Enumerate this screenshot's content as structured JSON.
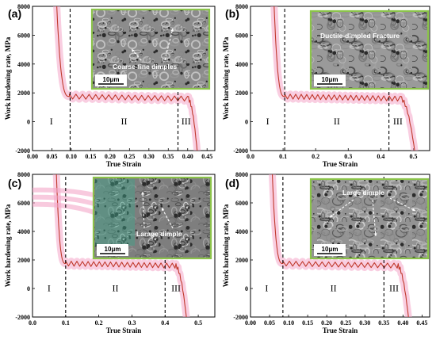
{
  "colors": {
    "curve": "#c0392b",
    "band": "#f4a6c8",
    "inset_border": "#8bc34a",
    "divider": "#000000"
  },
  "chart_data": [
    {
      "panel": "(a)",
      "type": "line",
      "xlabel": "True Strain",
      "ylabel": "Work hardening rate, MPa",
      "xlim": [
        0.0,
        0.47
      ],
      "ylim": [
        -2000,
        8000
      ],
      "xticks": [
        "0.00",
        "0.05",
        "0.10",
        "0.15",
        "0.20",
        "0.25",
        "0.30",
        "0.35",
        "0.40",
        "0.45"
      ],
      "yticks": [
        "-2000",
        "0",
        "2000",
        "4000",
        "6000",
        "8000"
      ],
      "stage_labels": [
        "I",
        "II",
        "III"
      ],
      "dividers": [
        0.097,
        0.375
      ],
      "curve": {
        "x0": 0.06,
        "plateau_start": 0.095,
        "plateau": 1750,
        "plateau_end": 0.4,
        "end": 0.425
      },
      "inset": {
        "text": "Coarse-fine dimples",
        "scale": "10μm"
      }
    },
    {
      "panel": "(b)",
      "type": "line",
      "xlabel": "True Strain",
      "ylabel": "Work hardening rate, MPa",
      "xlim": [
        0.0,
        0.55
      ],
      "ylim": [
        -2000,
        8000
      ],
      "xticks": [
        "0.0",
        "0.1",
        "0.2",
        "0.3",
        "0.4",
        "0.5"
      ],
      "yticks": [
        "-2000",
        "0",
        "2000",
        "4000",
        "6000",
        "8000"
      ],
      "stage_labels": [
        "I",
        "II",
        "III"
      ],
      "dividers": [
        0.105,
        0.425
      ],
      "curve": {
        "x0": 0.07,
        "plateau_start": 0.105,
        "plateau": 1750,
        "plateau_end": 0.46,
        "end": 0.505
      },
      "inset": {
        "text": "Ductile-dimpled Fracture",
        "scale": "10μm"
      }
    },
    {
      "panel": "(c)",
      "type": "line",
      "xlabel": "True Strain",
      "ylabel": "Work hardening rate, MPa",
      "xlim": [
        0.0,
        0.55
      ],
      "ylim": [
        -2000,
        8000
      ],
      "xticks": [
        "0.0",
        "0.1",
        "0.2",
        "0.3",
        "0.4",
        "0.5"
      ],
      "yticks": [
        "-2000",
        "0",
        "2000",
        "4000",
        "6000",
        "8000"
      ],
      "stage_labels": [
        "I",
        "II",
        "III"
      ],
      "dividers": [
        0.1,
        0.4
      ],
      "curve": {
        "x0": 0.07,
        "plateau_start": 0.1,
        "plateau": 1750,
        "plateau_end": 0.43,
        "end": 0.465
      },
      "inset": {
        "text": "Larage dimple",
        "scale": "10μm"
      }
    },
    {
      "panel": "(d)",
      "type": "line",
      "xlabel": "True Strain",
      "ylabel": "Work hardening rate, MPa",
      "xlim": [
        0.0,
        0.47
      ],
      "ylim": [
        -2000,
        8000
      ],
      "xticks": [
        "0.00",
        "0.05",
        "0.10",
        "0.15",
        "0.20",
        "0.25",
        "0.30",
        "0.35",
        "0.40",
        "0.45"
      ],
      "yticks": [
        "-2000",
        "0",
        "2000",
        "4000",
        "6000",
        "8000"
      ],
      "stage_labels": [
        "I",
        "II",
        "III"
      ],
      "dividers": [
        0.085,
        0.35
      ],
      "curve": {
        "x0": 0.055,
        "plateau_start": 0.085,
        "plateau": 1750,
        "plateau_end": 0.385,
        "end": 0.415
      },
      "inset": {
        "text": "Large dimple",
        "scale": "10μm"
      }
    }
  ]
}
